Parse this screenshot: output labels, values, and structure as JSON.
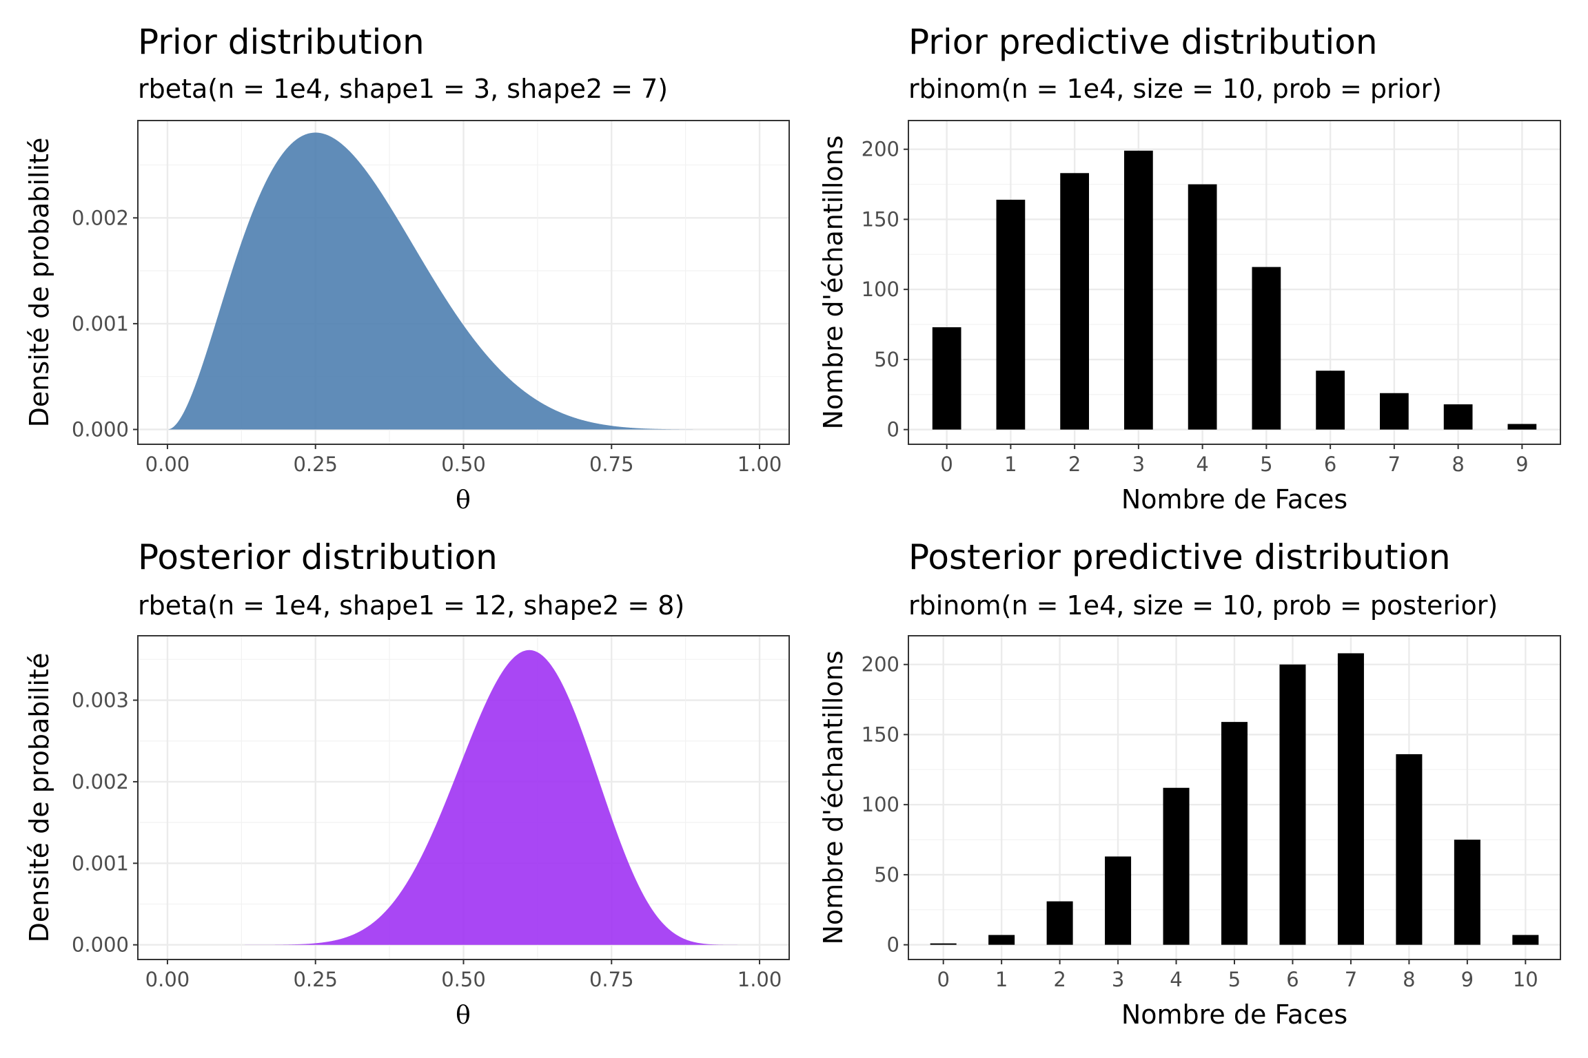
{
  "chart_data": [
    {
      "id": "prior",
      "type": "area",
      "title": "Prior distribution",
      "subtitle": "rbeta(n = 1e4, shape1 = 3, shape2 = 7)",
      "xlabel": "θ",
      "ylabel": "Densité de probabilité",
      "xlim": [
        -0.05,
        1.05
      ],
      "ylim": [
        -0.00014,
        0.00292
      ],
      "xticks": [
        0,
        0.25,
        0.5,
        0.75,
        1
      ],
      "xtick_labels": [
        "0.00",
        "0.25",
        "0.50",
        "0.75",
        "1.00"
      ],
      "yticks": [
        0,
        0.001,
        0.002
      ],
      "ytick_labels": [
        "0.000",
        "0.001",
        "0.002"
      ],
      "distribution": {
        "family": "beta",
        "shape1": 3,
        "shape2": 7,
        "grid_points": 1000
      },
      "fill": "#4f7fb0",
      "grid": true
    },
    {
      "id": "prior-predictive",
      "type": "bar",
      "title": "Prior predictive distribution",
      "subtitle": "rbinom(n = 1e4, size = 10, prob = prior)",
      "xlabel": "Nombre de Faces",
      "ylabel": "Nombre d'échantillons",
      "categories": [
        "0",
        "1",
        "2",
        "3",
        "4",
        "5",
        "6",
        "7",
        "8",
        "9"
      ],
      "values": [
        73,
        164,
        183,
        199,
        175,
        116,
        42,
        26,
        18,
        4
      ],
      "ylim": [
        -10.5,
        220.5
      ],
      "yticks": [
        0,
        50,
        100,
        150,
        200
      ],
      "ytick_labels": [
        "0",
        "50",
        "100",
        "150",
        "200"
      ],
      "fill": "#000000",
      "grid": true
    },
    {
      "id": "posterior",
      "type": "area",
      "title": "Posterior distribution",
      "subtitle": "rbeta(n = 1e4, shape1 = 12, shape2 = 8)",
      "xlabel": "θ",
      "ylabel": "Densité de probabilité",
      "xlim": [
        -0.05,
        1.05
      ],
      "ylim": [
        -0.00018,
        0.00379
      ],
      "xticks": [
        0,
        0.25,
        0.5,
        0.75,
        1
      ],
      "xtick_labels": [
        "0.00",
        "0.25",
        "0.50",
        "0.75",
        "1.00"
      ],
      "yticks": [
        0,
        0.001,
        0.002,
        0.003
      ],
      "ytick_labels": [
        "0.000",
        "0.001",
        "0.002",
        "0.003"
      ],
      "distribution": {
        "family": "beta",
        "shape1": 12,
        "shape2": 8,
        "grid_points": 1000
      },
      "fill": "#a033f3",
      "grid": true
    },
    {
      "id": "posterior-predictive",
      "type": "bar",
      "title": "Posterior predictive distribution",
      "subtitle": "rbinom(n = 1e4, size = 10, prob = posterior)",
      "xlabel": "Nombre de Faces",
      "ylabel": "Nombre d'échantillons",
      "categories": [
        "0",
        "1",
        "2",
        "3",
        "4",
        "5",
        "6",
        "7",
        "8",
        "9",
        "10"
      ],
      "values": [
        1,
        7,
        31,
        63,
        112,
        159,
        200,
        208,
        136,
        75,
        7
      ],
      "ylim": [
        -10.5,
        220.5
      ],
      "yticks": [
        0,
        50,
        100,
        150,
        200
      ],
      "ytick_labels": [
        "0",
        "50",
        "100",
        "150",
        "200"
      ],
      "fill": "#000000",
      "grid": true
    }
  ]
}
